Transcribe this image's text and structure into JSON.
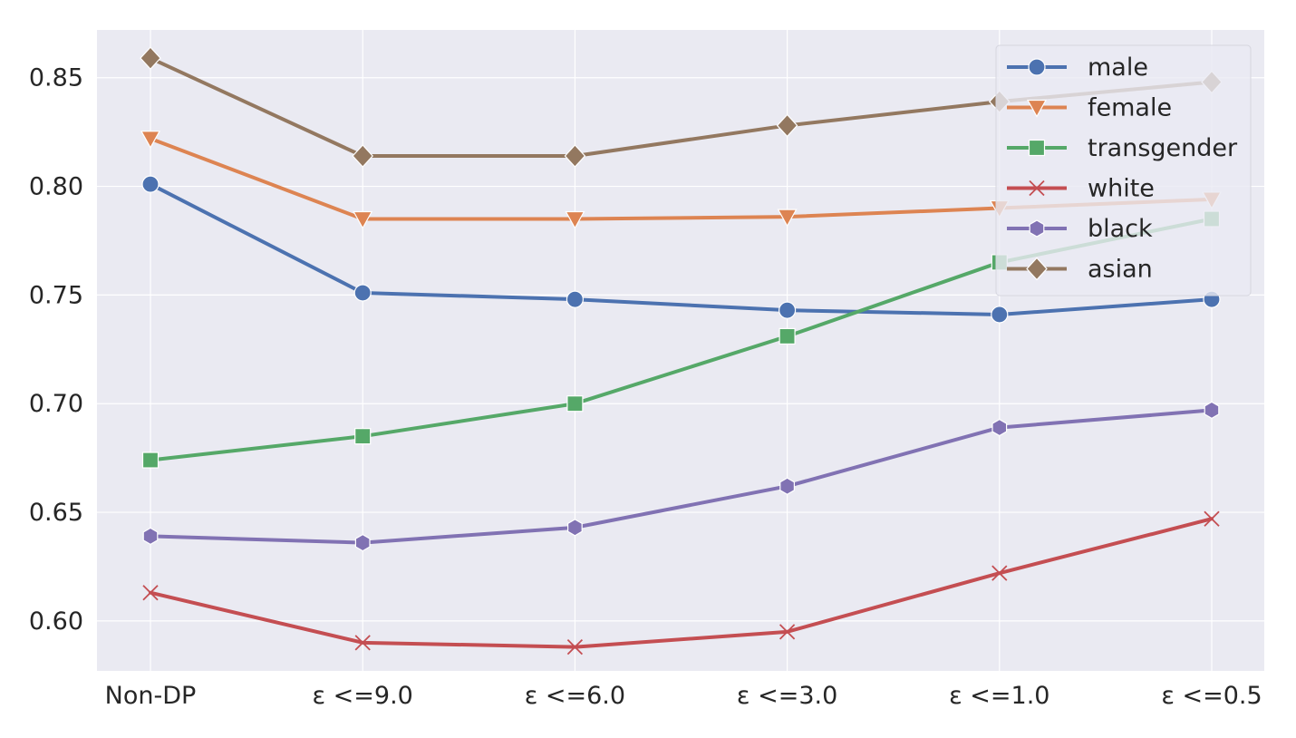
{
  "chart_data": {
    "type": "line",
    "categories": [
      "Non-DP",
      "ε <=9.0",
      "ε <=6.0",
      "ε <=3.0",
      "ε <=1.0",
      "ε <=0.5"
    ],
    "ylim": [
      0.577,
      0.872
    ],
    "yticks": [
      0.6,
      0.65,
      0.7,
      0.75,
      0.8,
      0.85
    ],
    "ytick_labels": [
      "0.60",
      "0.65",
      "0.70",
      "0.75",
      "0.80",
      "0.85"
    ],
    "grid": true,
    "legend_position": "top-right",
    "title": "",
    "xlabel": "",
    "ylabel": "",
    "series": [
      {
        "name": "male",
        "color": "#4c72b0",
        "marker": "circle",
        "values": [
          0.801,
          0.751,
          0.748,
          0.743,
          0.741,
          0.748
        ]
      },
      {
        "name": "female",
        "color": "#dd8452",
        "marker": "triangle-down",
        "values": [
          0.822,
          0.785,
          0.785,
          0.786,
          0.79,
          0.794
        ]
      },
      {
        "name": "transgender",
        "color": "#55a868",
        "marker": "square",
        "values": [
          0.674,
          0.685,
          0.7,
          0.731,
          0.765,
          0.785
        ]
      },
      {
        "name": "white",
        "color": "#c44e52",
        "marker": "x",
        "values": [
          0.613,
          0.59,
          0.588,
          0.595,
          0.622,
          0.647
        ]
      },
      {
        "name": "black",
        "color": "#8172b3",
        "marker": "hexagon",
        "values": [
          0.639,
          0.636,
          0.643,
          0.662,
          0.689,
          0.697
        ]
      },
      {
        "name": "asian",
        "color": "#937860",
        "marker": "diamond",
        "values": [
          0.859,
          0.814,
          0.814,
          0.828,
          0.839,
          0.848
        ]
      }
    ]
  }
}
